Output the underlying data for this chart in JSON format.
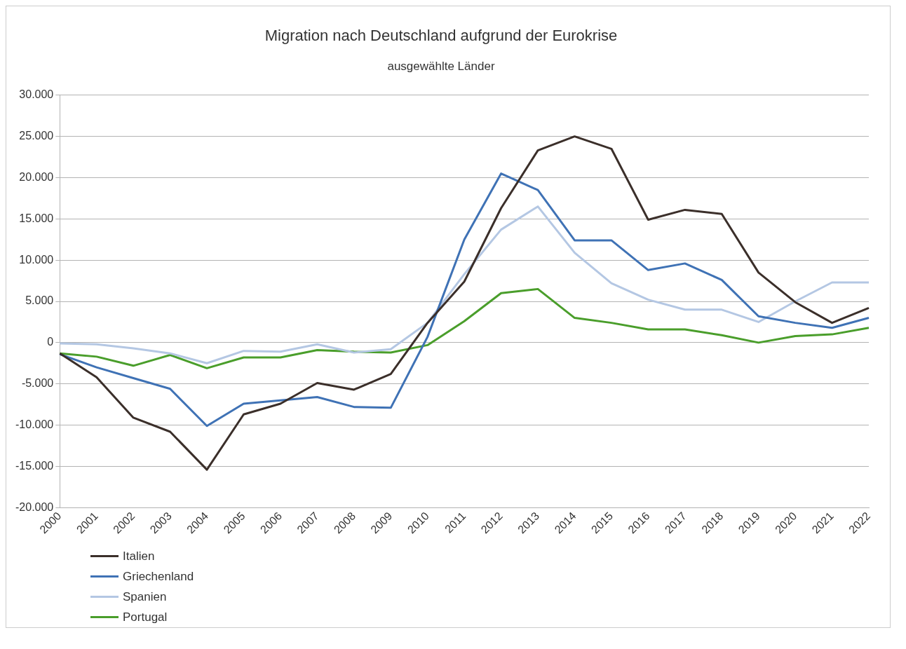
{
  "chart_data": {
    "type": "line",
    "title": "Migration nach Deutschland aufgrund der Eurokrise",
    "subtitle": "ausgewählte Länder",
    "categories": [
      "2000",
      "2001",
      "2002",
      "2003",
      "2004",
      "2005",
      "2006",
      "2007",
      "2008",
      "2009",
      "2010",
      "2011",
      "2012",
      "2013",
      "2014",
      "2015",
      "2016",
      "2017",
      "2018",
      "2019",
      "2020",
      "2021",
      "2022"
    ],
    "series": [
      {
        "name": "Italien",
        "color": "#3b2f2a",
        "values": [
          -1300,
          -4200,
          -9100,
          -10800,
          -15400,
          -8700,
          -7400,
          -4900,
          -5700,
          -3800,
          2400,
          7400,
          16300,
          23300,
          25000,
          23500,
          14900,
          16100,
          15600,
          8500,
          4900,
          2400,
          4200
        ]
      },
      {
        "name": "Griechenland",
        "color": "#3f72b5",
        "values": [
          -1400,
          -3000,
          -4300,
          -5600,
          -10100,
          -7400,
          -7000,
          -6600,
          -7800,
          -7900,
          700,
          12500,
          20500,
          18500,
          12400,
          12400,
          8800,
          9600,
          7600,
          3200,
          2400,
          1800,
          3000
        ]
      },
      {
        "name": "Spanien",
        "color": "#b4c7e3",
        "values": [
          -100,
          -200,
          -700,
          -1300,
          -2500,
          -1000,
          -1100,
          -200,
          -1200,
          -800,
          2400,
          8300,
          13700,
          16500,
          10900,
          7200,
          5200,
          4000,
          4000,
          2500,
          5000,
          7300,
          7300
        ]
      },
      {
        "name": "Portugal",
        "color": "#4a9e2b",
        "values": [
          -1300,
          -1700,
          -2800,
          -1500,
          -3100,
          -1800,
          -1800,
          -900,
          -1100,
          -1200,
          -300,
          2600,
          6000,
          6500,
          3000,
          2400,
          1600,
          1600,
          900,
          0,
          800,
          1000,
          1800
        ]
      }
    ],
    "ylim": [
      -20000,
      30000
    ],
    "yticks": [
      {
        "value": -20000,
        "label": "-20.000"
      },
      {
        "value": -15000,
        "label": "-15.000"
      },
      {
        "value": -10000,
        "label": "-10.000"
      },
      {
        "value": -5000,
        "label": "-5.000"
      },
      {
        "value": 0,
        "label": "0"
      },
      {
        "value": 5000,
        "label": "5.000"
      },
      {
        "value": 10000,
        "label": "10.000"
      },
      {
        "value": 15000,
        "label": "15.000"
      },
      {
        "value": 20000,
        "label": "20.000"
      },
      {
        "value": 25000,
        "label": "25.000"
      },
      {
        "value": 30000,
        "label": "30.000"
      }
    ],
    "grid": "y",
    "legend": "bottom left",
    "marker": "none",
    "line_style": "solid"
  }
}
